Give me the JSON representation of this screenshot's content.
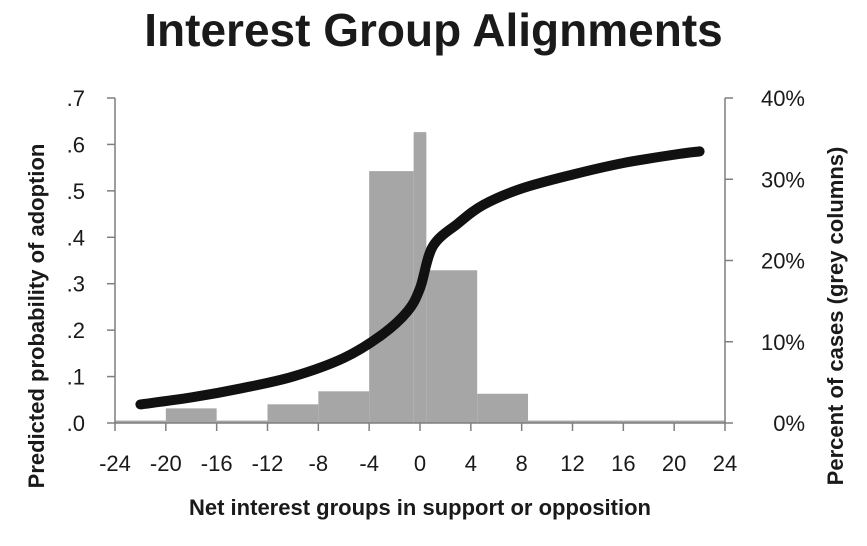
{
  "chart_data": {
    "type": "bar",
    "title": "Interest Group Alignments",
    "xlabel": "Net interest groups in support or opposition",
    "ylabel_left": "Predicted probability of adoption",
    "ylabel_right": "Percent of cases (grey columns)",
    "xlim": [
      -24,
      24
    ],
    "ylim_left": [
      0,
      0.7
    ],
    "ylim_right": [
      0,
      40
    ],
    "x_ticks": [
      -24,
      -20,
      -16,
      -12,
      -8,
      -4,
      0,
      4,
      8,
      12,
      16,
      20,
      24
    ],
    "x_tick_labels": [
      "-24",
      "-20",
      "-16",
      "-12",
      "-8",
      "-4",
      "0",
      "4",
      "8",
      "12",
      "16",
      "20",
      "24"
    ],
    "y_left_ticks": [
      0,
      0.1,
      0.2,
      0.3,
      0.4,
      0.5,
      0.6,
      0.7
    ],
    "y_left_tick_labels": [
      ".0",
      ".1",
      ".2",
      ".3",
      ".4",
      ".5",
      ".6",
      ".7"
    ],
    "y_right_ticks": [
      0,
      10,
      20,
      30,
      40
    ],
    "y_right_tick_labels": [
      "0%",
      "10%",
      "20%",
      "30%",
      "40%"
    ],
    "histogram": {
      "name": "Percent of cases",
      "axis": "right",
      "color": "#a6a6a6",
      "bins": [
        {
          "x0": -24,
          "x1": -20,
          "value": 0.3
        },
        {
          "x0": -20,
          "x1": -16,
          "value": 1.8
        },
        {
          "x0": -16,
          "x1": -12,
          "value": 0.3
        },
        {
          "x0": -12,
          "x1": -8,
          "value": 2.3
        },
        {
          "x0": -8,
          "x1": -4,
          "value": 3.9
        },
        {
          "x0": -4,
          "x1": -0.5,
          "value": 31.0
        },
        {
          "x0": -0.5,
          "x1": 0.5,
          "value": 35.8
        },
        {
          "x0": 0.5,
          "x1": 4.5,
          "value": 18.8
        },
        {
          "x0": 4.5,
          "x1": 8.5,
          "value": 3.6
        },
        {
          "x0": 8.5,
          "x1": 12,
          "value": 0.3
        },
        {
          "x0": 12,
          "x1": 16,
          "value": 0.3
        },
        {
          "x0": 16,
          "x1": 20,
          "value": 0.3
        },
        {
          "x0": 20,
          "x1": 24,
          "value": 0.3
        }
      ]
    },
    "curve": {
      "name": "Predicted probability",
      "axis": "left",
      "color": "#111111",
      "points": [
        {
          "x": -22,
          "y": 0.04
        },
        {
          "x": -18,
          "y": 0.055
        },
        {
          "x": -14,
          "y": 0.075
        },
        {
          "x": -10,
          "y": 0.1
        },
        {
          "x": -6,
          "y": 0.14
        },
        {
          "x": -3,
          "y": 0.19
        },
        {
          "x": -1,
          "y": 0.24
        },
        {
          "x": 0,
          "y": 0.29
        },
        {
          "x": 1,
          "y": 0.38
        },
        {
          "x": 3,
          "y": 0.43
        },
        {
          "x": 5,
          "y": 0.47
        },
        {
          "x": 8,
          "y": 0.505
        },
        {
          "x": 12,
          "y": 0.535
        },
        {
          "x": 16,
          "y": 0.56
        },
        {
          "x": 20,
          "y": 0.578
        },
        {
          "x": 22,
          "y": 0.585
        }
      ]
    },
    "grid": false
  }
}
